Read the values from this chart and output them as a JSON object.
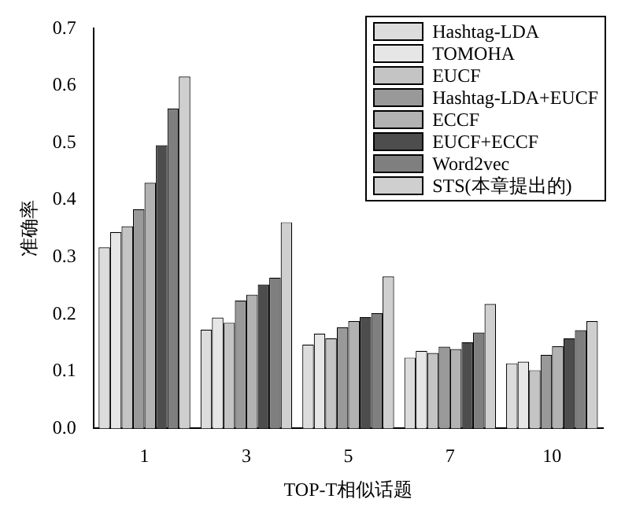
{
  "chart_data": {
    "type": "bar",
    "xlabel": "TOP-T相似话题",
    "ylabel": "准确率",
    "categories": [
      "1",
      "3",
      "5",
      "7",
      "10"
    ],
    "series": [
      {
        "name": "Hashtag-LDA",
        "color": "#dcdcdc",
        "values": [
          0.317,
          0.173,
          0.147,
          0.124,
          0.114
        ]
      },
      {
        "name": "TOMOHA",
        "color": "#e6e6e6",
        "values": [
          0.344,
          0.194,
          0.166,
          0.136,
          0.117
        ]
      },
      {
        "name": "EUCF",
        "color": "#c4c4c4",
        "values": [
          0.354,
          0.185,
          0.158,
          0.132,
          0.102
        ]
      },
      {
        "name": "Hashtag-LDA+EUCF",
        "color": "#999999",
        "values": [
          0.384,
          0.224,
          0.177,
          0.143,
          0.129
        ]
      },
      {
        "name": "ECCF",
        "color": "#b2b2b2",
        "values": [
          0.43,
          0.234,
          0.188,
          0.139,
          0.144
        ]
      },
      {
        "name": "EUCF+ECCF",
        "color": "#4d4d4d",
        "values": [
          0.496,
          0.252,
          0.195,
          0.151,
          0.158
        ]
      },
      {
        "name": "Word2vec",
        "color": "#7f7f7f",
        "values": [
          0.56,
          0.264,
          0.202,
          0.168,
          0.172
        ]
      },
      {
        "name": "STS(本章提出的)",
        "color": "#cfcfcf",
        "values": [
          0.616,
          0.361,
          0.266,
          0.218,
          0.188
        ]
      }
    ],
    "ylim": [
      0,
      0.7
    ],
    "yticks": [
      {
        "value": 0,
        "label": "0.0"
      },
      {
        "value": 0.1,
        "label": "0.1"
      },
      {
        "value": 0.2,
        "label": "0.2"
      },
      {
        "value": 0.3,
        "label": "0.3"
      },
      {
        "value": 0.4,
        "label": "0.4"
      },
      {
        "value": 0.5,
        "label": "0.5"
      },
      {
        "value": 0.6,
        "label": "0.6"
      },
      {
        "value": 0.7,
        "label": "0.7"
      }
    ],
    "grid": false,
    "legend": "top right"
  }
}
